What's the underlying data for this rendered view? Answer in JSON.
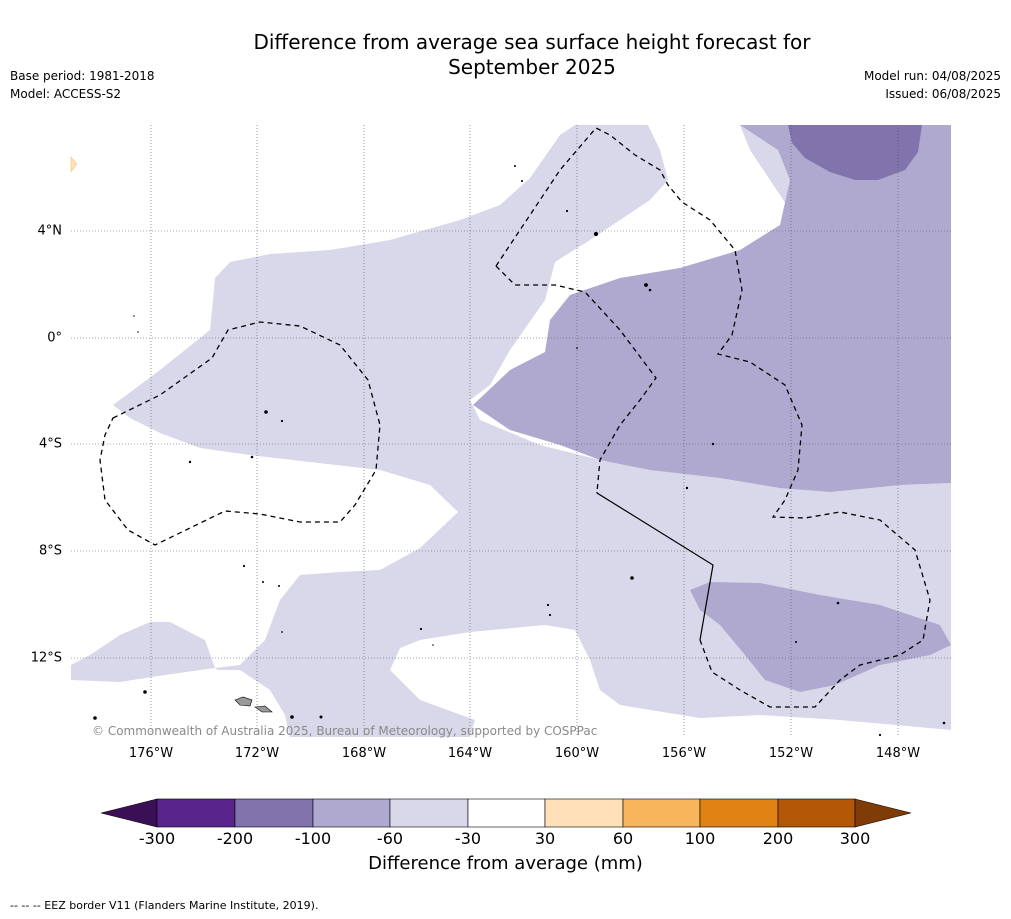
{
  "header": {
    "title_line1": "Difference from average sea surface height forecast for",
    "title_line2": "September 2025",
    "base_period": "Base period: 1981-2018",
    "model": "Model: ACCESS-S2",
    "model_run": "Model run: 04/08/2025",
    "issued": "Issued: 06/08/2025"
  },
  "map": {
    "copyright": "© Commonwealth of Australia 2025, Bureau of Meteorology, supported by COSPPac",
    "lon_labels": [
      "176°W",
      "172°W",
      "168°W",
      "164°W",
      "160°W",
      "156°W",
      "152°W",
      "148°W"
    ],
    "lat_labels": [
      "4°N",
      "0°",
      "4°S",
      "8°S",
      "12°S"
    ],
    "fill_colors": {
      "light_purple": "#d8d8ea",
      "medium_purple": "#b0a9cf",
      "dark_purple": "#8173ab",
      "light_orange": "#ffe0b8"
    }
  },
  "colorbar": {
    "title": "Difference from average (mm)",
    "ticks": [
      "-300",
      "-200",
      "-100",
      "-60",
      "-30",
      "30",
      "60",
      "100",
      "200",
      "300"
    ],
    "colors": [
      "#3b0f56",
      "#57258b",
      "#8173ab",
      "#b0a9cf",
      "#d8d8ea",
      "#ffffff",
      "#ffe0b8",
      "#f8b55c",
      "#e08214",
      "#b35806",
      "#7f3b08"
    ]
  },
  "footer": {
    "eez_note": "--  --  -- EEZ border V11 (Flanders Marine Institute, 2019)."
  }
}
